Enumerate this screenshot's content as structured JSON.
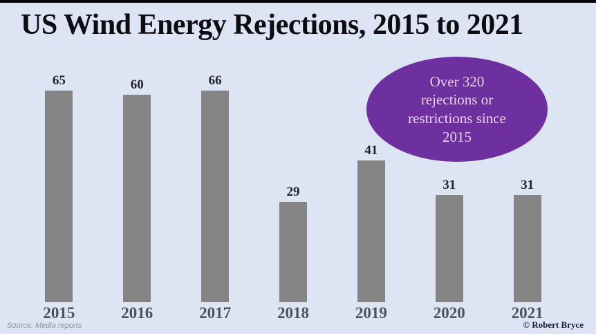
{
  "title": "US Wind Energy Rejections, 2015 to 2021",
  "annotation": {
    "text": "Over 320 rejections or restrictions since 2015",
    "lines": [
      "Over 320",
      "rejections or",
      "restrictions since",
      "2015"
    ]
  },
  "footer": {
    "source": "Source: Media reports",
    "copyright": "© Robert Bryce"
  },
  "colors": {
    "background": "#dde4f3",
    "top_border": "#060606",
    "bar": "#858585",
    "annotation_fill": "#6e2f9f",
    "annotation_text": "#e6d3f0",
    "value_label": "#23232d",
    "year_label": "#4b5160",
    "copyright_text": "#1b1b3d"
  },
  "chart_data": {
    "type": "bar",
    "categories": [
      "2015",
      "2016",
      "2017",
      "2018",
      "2019",
      "2020",
      "2021"
    ],
    "values": [
      65,
      60,
      66,
      29,
      41,
      31,
      31
    ],
    "title": "US Wind Energy Rejections, 2015 to 2021",
    "xlabel": "",
    "ylabel": "",
    "ylim": [
      0,
      66
    ],
    "grid": false,
    "legend": null,
    "data_labels": true,
    "annotation": "Over 320 rejections or restrictions since 2015"
  }
}
